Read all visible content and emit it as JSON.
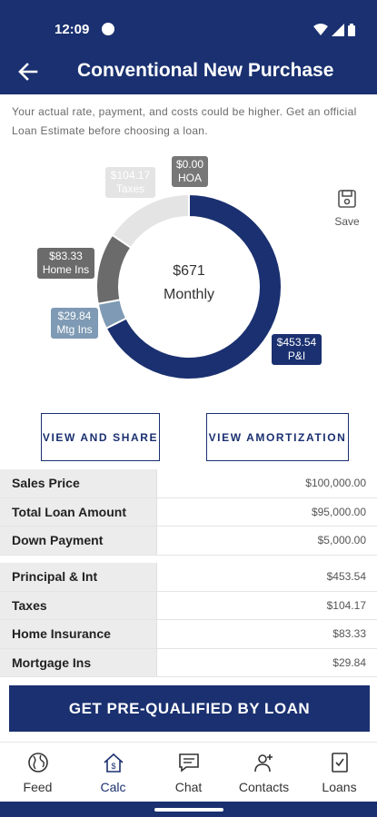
{
  "status_bar": {
    "time": "12:09"
  },
  "header": {
    "title": "Conventional New Purchase"
  },
  "disclaimer": "Your actual rate, payment, and costs could be higher. Get an official Loan Estimate before choosing a loan.",
  "chart_data": {
    "type": "donut",
    "center_amount": "$671",
    "center_label": "Monthly",
    "slices": [
      {
        "name": "P&I",
        "label": "P&I",
        "value": 453.54,
        "display": "$453.54",
        "color": "#1a3070"
      },
      {
        "name": "Mtg Ins",
        "label": "Mtg Ins",
        "value": 29.84,
        "display": "$29.84",
        "color": "#7e9ab4"
      },
      {
        "name": "Home Ins",
        "label": "Home Ins",
        "value": 83.33,
        "display": "$83.33",
        "color": "#6b6b6b"
      },
      {
        "name": "Taxes",
        "label": "Taxes",
        "value": 104.17,
        "display": "$104.17",
        "color": "#e4e4e4"
      },
      {
        "name": "HOA",
        "label": "HOA",
        "value": 0.0,
        "display": "$0.00",
        "color": "#777777"
      }
    ]
  },
  "save": {
    "label": "Save"
  },
  "buttons": {
    "view_share": "VIEW AND SHARE",
    "view_amortization": "VIEW AMORTIZATION"
  },
  "loan_table": [
    {
      "label": "Sales Price",
      "value": "$100,000.00"
    },
    {
      "label": "Total Loan Amount",
      "value": "$95,000.00"
    },
    {
      "label": "Down Payment",
      "value": "$5,000.00"
    }
  ],
  "payment_table": [
    {
      "label": "Principal & Int",
      "value": "$453.54"
    },
    {
      "label": "Taxes",
      "value": "$104.17"
    },
    {
      "label": "Home Insurance",
      "value": "$83.33"
    },
    {
      "label": "Mortgage Ins",
      "value": "$29.84"
    }
  ],
  "cta": {
    "label": "GET PRE-QUALIFIED BY LOAN"
  },
  "nav": {
    "items": [
      {
        "label": "Feed",
        "icon": "globe-icon"
      },
      {
        "label": "Calc",
        "icon": "calculator-home-icon"
      },
      {
        "label": "Chat",
        "icon": "chat-icon"
      },
      {
        "label": "Contacts",
        "icon": "contacts-icon"
      },
      {
        "label": "Loans",
        "icon": "document-check-icon"
      }
    ],
    "active": "Calc"
  }
}
